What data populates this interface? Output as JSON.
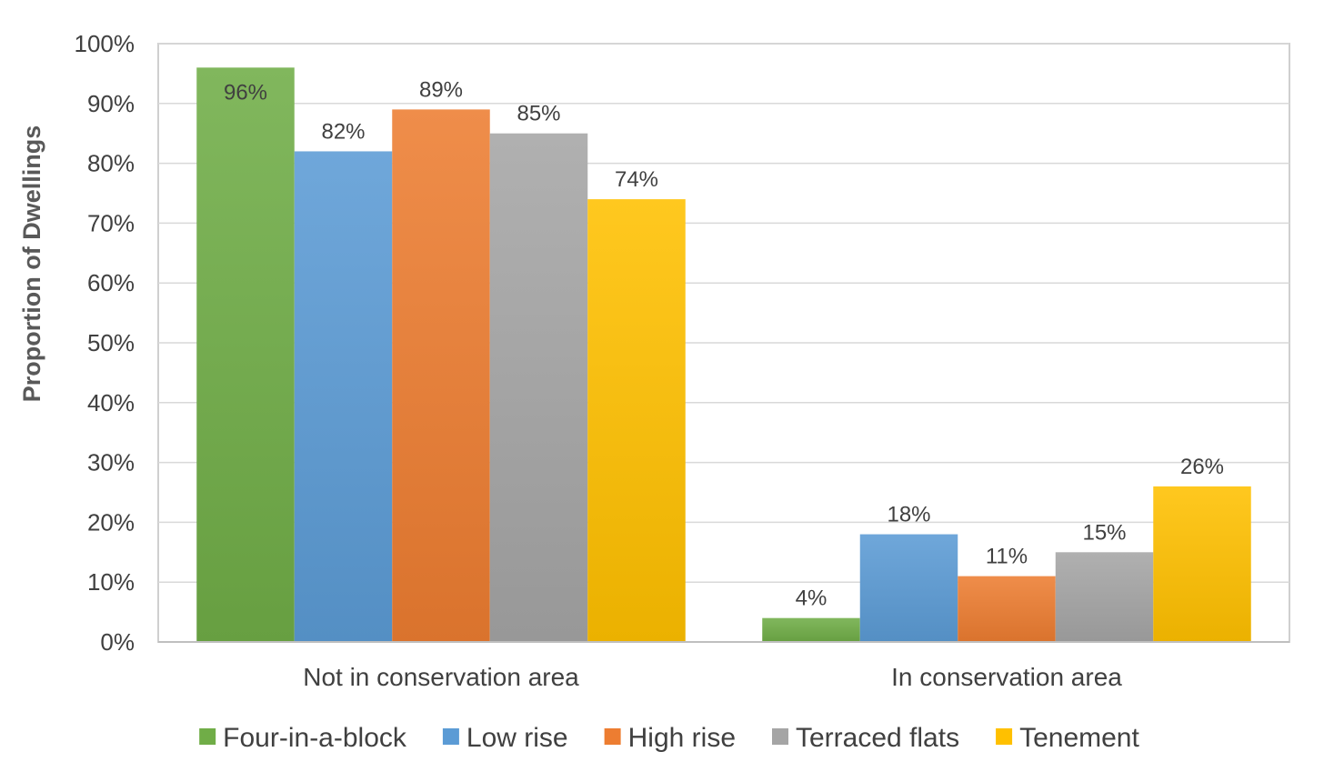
{
  "chart_data": {
    "type": "bar",
    "title": "",
    "xlabel": "",
    "ylabel": "Proportion of Dwellings",
    "ylim": [
      0,
      100
    ],
    "yticks": [
      "0%",
      "10%",
      "20%",
      "30%",
      "40%",
      "50%",
      "60%",
      "70%",
      "80%",
      "90%",
      "100%"
    ],
    "categories": [
      "Not in conservation area",
      "In conservation area"
    ],
    "series": [
      {
        "name": "Four-in-a-block",
        "color": "#70ad47",
        "values": [
          96,
          4
        ],
        "labels": [
          "96%",
          "4%"
        ]
      },
      {
        "name": "Low rise",
        "color": "#5b9bd5",
        "values": [
          82,
          18
        ],
        "labels": [
          "82%",
          "18%"
        ]
      },
      {
        "name": "High rise",
        "color": "#ed7d31",
        "values": [
          89,
          11
        ],
        "labels": [
          "89%",
          "11%"
        ]
      },
      {
        "name": "Terraced flats",
        "color": "#a5a5a5",
        "values": [
          85,
          15
        ],
        "labels": [
          "85%",
          "15%"
        ]
      },
      {
        "name": "Tenement",
        "color": "#ffc000",
        "values": [
          74,
          26
        ],
        "labels": [
          "74%",
          "26%"
        ]
      }
    ],
    "grid": true,
    "legend_position": "bottom"
  }
}
